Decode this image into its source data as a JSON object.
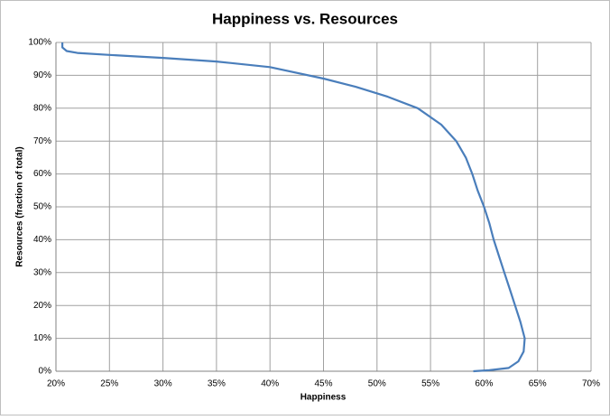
{
  "chart_data": {
    "type": "line",
    "title": "Happiness vs. Resources",
    "x_label": "Happiness",
    "y_label": "Resources (fraction of total)",
    "x": [
      59,
      60.5,
      62.3,
      63.2,
      63.7,
      63.8,
      63.4,
      62.9,
      62.4,
      61.9,
      61.4,
      60.9,
      60.5,
      60,
      59.4,
      58.9,
      58.3,
      57.4,
      56,
      53.8,
      51,
      48,
      45,
      40,
      35,
      30,
      25,
      22,
      21,
      20.6,
      20.6
    ],
    "values": [
      0,
      0.3,
      1,
      3,
      6,
      10,
      15,
      20,
      25,
      30,
      35,
      40,
      45,
      50,
      55,
      60,
      65,
      70,
      75,
      80,
      83.5,
      86.5,
      89,
      92.5,
      94.2,
      95.3,
      96.2,
      96.8,
      97.4,
      98.5,
      100
    ],
    "color": "#4a7ebb",
    "xlim": [
      20,
      70
    ],
    "xticks": [
      {
        "value": 20,
        "label": "20%"
      },
      {
        "value": 25,
        "label": "25%"
      },
      {
        "value": 30,
        "label": "30%"
      },
      {
        "value": 35,
        "label": "35%"
      },
      {
        "value": 40,
        "label": "40%"
      },
      {
        "value": 45,
        "label": "45%"
      },
      {
        "value": 50,
        "label": "50%"
      },
      {
        "value": 55,
        "label": "55%"
      },
      {
        "value": 60,
        "label": "60%"
      },
      {
        "value": 65,
        "label": "65%"
      },
      {
        "value": 70,
        "label": "70%"
      }
    ],
    "ylim": [
      0,
      100
    ],
    "yticks": [
      {
        "value": 0,
        "label": "0%"
      },
      {
        "value": 10,
        "label": "10%"
      },
      {
        "value": 20,
        "label": "20%"
      },
      {
        "value": 30,
        "label": "30%"
      },
      {
        "value": 40,
        "label": "40%"
      },
      {
        "value": 50,
        "label": "50%"
      },
      {
        "value": 60,
        "label": "60%"
      },
      {
        "value": 70,
        "label": "70%"
      },
      {
        "value": 80,
        "label": "80%"
      },
      {
        "value": 90,
        "label": "90%"
      },
      {
        "value": 100,
        "label": "100%"
      }
    ],
    "grid": true
  }
}
